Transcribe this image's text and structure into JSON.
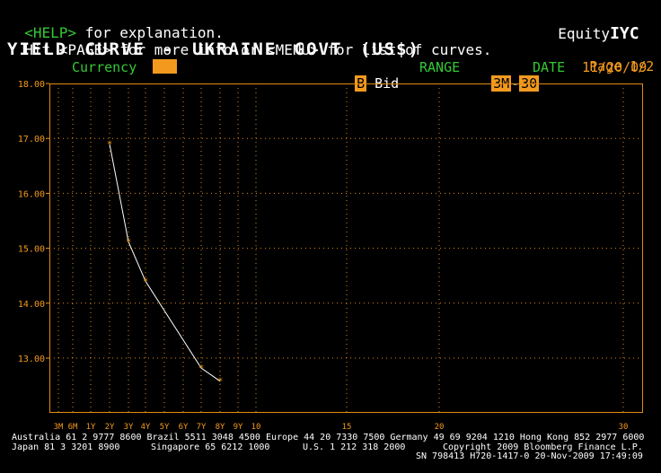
{
  "header": {
    "help_key": "<HELP>",
    "help_text": " for explanation.",
    "app_prefix": "Equity",
    "app_code": "IYC",
    "line2_a": "Hit ",
    "page_key": "<PAGE>",
    "line2_b": " for more info or ",
    "menu_key": "<MENU>",
    "line2_c": " for list of curves.",
    "title": "YIELD CURVE - UKRAINE GOVT (US$)",
    "page_label": "Page",
    "page_value": "1/2",
    "currency_label": "Currency",
    "currency_value": "",
    "bid_key": "B",
    "bid_label": "Bid",
    "range_label": "RANGE",
    "range_from": "3M",
    "range_sep": "-",
    "range_to": "30",
    "date_label": "DATE",
    "date_value": "11/20/09"
  },
  "footer": {
    "line1": "Australia 61 2 9777 8600 Brazil 5511 3048 4500 Europe 44 20 7330 7500 Germany 49 69 9204 1210 Hong Kong 852 2977 6000",
    "line2_left": "Japan 81 3 3201 8900",
    "line2_mid1": "Singapore 65 6212 1000",
    "line2_mid2": "U.S. 1 212 318 2000",
    "line2_right": "Copyright 2009 Bloomberg Finance L.P.",
    "line3": "SN 798413 H720-1417-0 20-Nov-2009 17:49:09"
  },
  "colors": {
    "background": "#000000",
    "axis_orange": "#f39a1e",
    "grid_orange": "#e58a14",
    "line_white": "#ffffff",
    "text_green": "#34c934"
  },
  "chart_data": {
    "type": "line",
    "title": "YIELD CURVE - UKRAINE GOVT (US$)",
    "xlabel": "",
    "ylabel": "",
    "x_tick_labels": [
      "3M",
      "6M",
      "1Y",
      "2Y",
      "3Y",
      "4Y",
      "5Y",
      "6Y",
      "7Y",
      "8Y",
      "9Y",
      "10",
      "15",
      "20",
      "30"
    ],
    "x_tick_years": [
      0.25,
      0.5,
      1,
      2,
      3,
      4,
      5,
      6,
      7,
      8,
      9,
      10,
      15,
      20,
      30
    ],
    "xlim": [
      0.25,
      30
    ],
    "y_ticks": [
      "18.00",
      "17.00",
      "16.00",
      "15.00",
      "14.00",
      "13.00"
    ],
    "y_tick_values": [
      18,
      17,
      16,
      15,
      14,
      13
    ],
    "ylim": [
      12.0,
      18.0
    ],
    "grid": true,
    "series": [
      {
        "name": "",
        "x": [
          2,
          3,
          4,
          7,
          8
        ],
        "y": [
          16.9,
          15.12,
          14.4,
          12.82,
          12.58
        ]
      }
    ]
  }
}
